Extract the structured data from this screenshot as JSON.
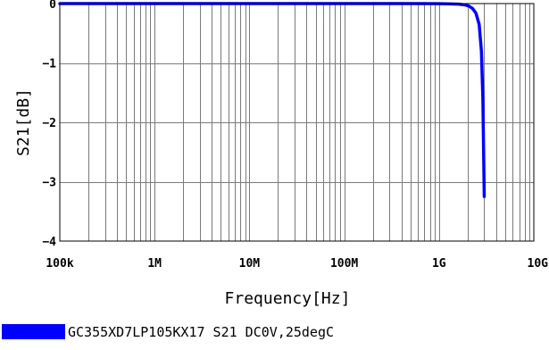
{
  "chart_data": {
    "type": "line",
    "xlabel": "Frequency[Hz]",
    "ylabel": "S21[dB]",
    "x_scale": "log",
    "xlim": [
      100000,
      10000000000
    ],
    "ylim": [
      -4,
      0
    ],
    "x_ticks": [
      {
        "value": 100000,
        "label": "100k"
      },
      {
        "value": 1000000,
        "label": "1M"
      },
      {
        "value": 10000000,
        "label": "10M"
      },
      {
        "value": 100000000,
        "label": "100M"
      },
      {
        "value": 1000000000,
        "label": "1G"
      },
      {
        "value": 10000000000,
        "label": "10G"
      }
    ],
    "y_ticks": [
      {
        "value": 0,
        "label": "0"
      },
      {
        "value": -1,
        "label": "−1"
      },
      {
        "value": -2,
        "label": "−2"
      },
      {
        "value": -3,
        "label": "−3"
      },
      {
        "value": -4,
        "label": "−4"
      }
    ],
    "grid": true,
    "legend_position": "bottom-left",
    "series": [
      {
        "name": "GC355XD7LP105KX17 S21 DC0V,25degC",
        "color": "#0000ff",
        "x": [
          100000,
          1000000,
          10000000,
          100000000,
          500000000,
          1000000000,
          1300000000,
          1600000000,
          1850000000,
          2050000000,
          2250000000,
          2450000000,
          2650000000,
          2800000000,
          2900000000,
          3000000000
        ],
        "y": [
          0,
          0,
          0,
          0,
          0,
          -0.002,
          -0.005,
          -0.01,
          -0.02,
          -0.04,
          -0.08,
          -0.16,
          -0.35,
          -0.8,
          -1.6,
          -3.25
        ]
      }
    ]
  }
}
